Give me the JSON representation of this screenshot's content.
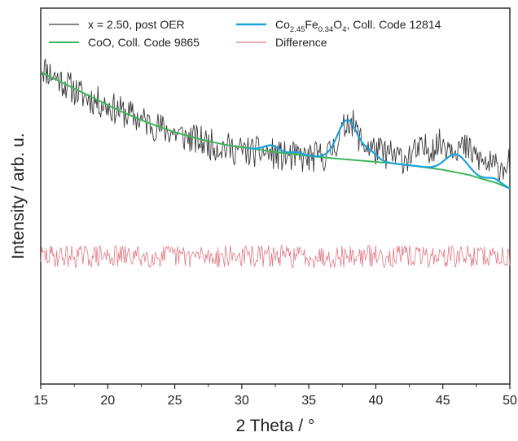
{
  "chart_data": {
    "type": "line",
    "xlabel": "2 Theta / °",
    "ylabel": "Intensity / arb. u.",
    "xlim": [
      15,
      50
    ],
    "ylim": [
      0,
      100
    ],
    "xticks": [
      15,
      20,
      25,
      30,
      35,
      40,
      45,
      50
    ],
    "y_tick_labels_shown": false,
    "grid": false,
    "legend_position": "top",
    "legend": [
      {
        "id": "s_obs",
        "label": "x = 2.50, post OER",
        "color": "#3a3a3a"
      },
      {
        "id": "s_cof",
        "label": "Co2.45Fe0.34O4, Coll. Code 12814",
        "color": "#1aa3dc"
      },
      {
        "id": "s_coo",
        "label": "CoO, Coll. Code 9865",
        "color": "#3db55a"
      },
      {
        "id": "s_diff",
        "label": "Difference",
        "color": "#e07a86"
      }
    ],
    "cof_label_parts": {
      "a": "Co",
      "a_sub": "2.45",
      "b": "Fe",
      "b_sub": "0.34",
      "c": "O",
      "c_sub": "4",
      "rest": ", Coll. Code 12814"
    },
    "series": [
      {
        "name": "x = 2.50, post OER",
        "color": "#3a3a3a",
        "noise_amplitude": 4.2,
        "seed": 11,
        "x": [
          15,
          16,
          18,
          20,
          22,
          24,
          26,
          28,
          30,
          32,
          33,
          35,
          36.5,
          37.5,
          38,
          39,
          40,
          42,
          44,
          45,
          46,
          47,
          48,
          49,
          50
        ],
        "y": [
          84.5,
          82,
          77,
          74,
          71,
          68,
          65.5,
          63.5,
          62,
          61.5,
          60.5,
          60,
          61,
          67,
          71,
          64,
          62,
          60,
          63,
          64,
          63.5,
          62,
          59,
          57.5,
          59
        ]
      },
      {
        "name": "CoO, Coll. Code 9865",
        "color": "#3db55a",
        "x": [
          15,
          17,
          19,
          21,
          23,
          25,
          27,
          29,
          31,
          33,
          35,
          37,
          39,
          41,
          43,
          45,
          47,
          48,
          49,
          50
        ],
        "y": [
          83,
          79.5,
          76,
          72.5,
          69.5,
          67,
          65,
          63.5,
          62.5,
          61.5,
          60.7,
          60,
          59.4,
          58.8,
          58,
          57,
          55.6,
          54.5,
          53.5,
          52
        ]
      },
      {
        "name": "Co2.45Fe0.34O4, Coll. Code 12814",
        "color": "#1aa3dc",
        "x_start": 30.5,
        "peaks": [
          {
            "center": 32.2,
            "height": 1.6,
            "width": 0.55
          },
          {
            "center": 34.1,
            "height": 0.6,
            "width": 0.45
          },
          {
            "center": 37.9,
            "height": 10.5,
            "width": 0.75
          },
          {
            "center": 39.6,
            "height": 2.2,
            "width": 0.55
          },
          {
            "center": 46.0,
            "height": 4.8,
            "width": 0.8
          },
          {
            "center": 48.8,
            "height": 1.0,
            "width": 0.5
          }
        ]
      },
      {
        "name": "Difference",
        "color": "#e07a86",
        "baseline": 34,
        "noise_amplitude": 3.0,
        "seed": 29
      }
    ]
  }
}
